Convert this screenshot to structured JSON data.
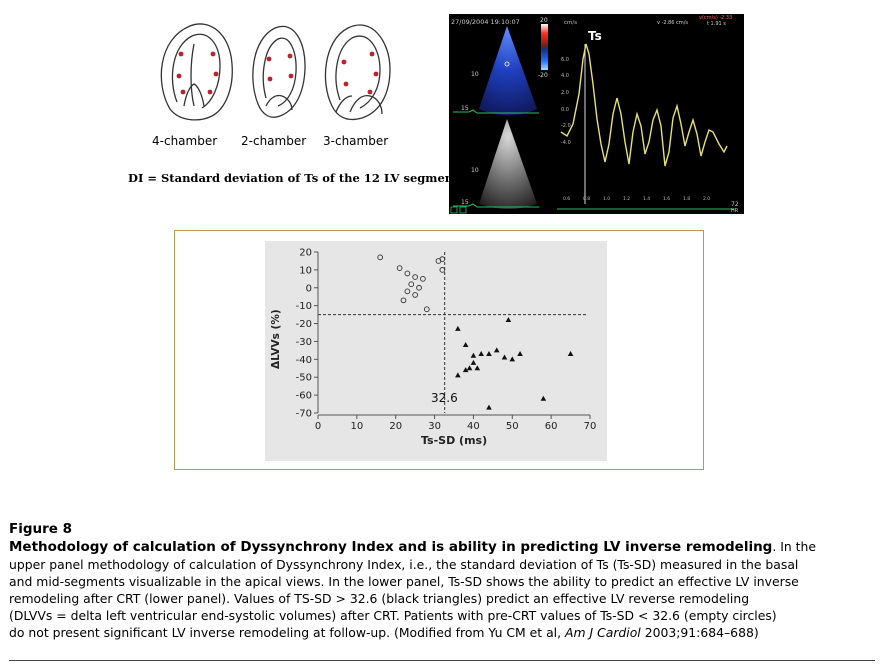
{
  "top_panel": {
    "views": [
      "4-chamber",
      "2-chamber",
      "3-chamber"
    ],
    "di_definition": "DI = Standard deviation of Ts of the 12 LV segments"
  },
  "echo": {
    "timestamp": "27/09/2004 19:10:07",
    "ts_label": "Ts",
    "scale_top": "20",
    "scale_bottom": "-20",
    "unit": "cm/s",
    "readout_left": "v -2.86 cm/s",
    "readout_right": "v(cm/s) -2.33",
    "readout_right2": "t 1.91 s",
    "depth_mark": "15",
    "depth_mark2": "10",
    "y_ticks": [
      "6.0",
      "4.0",
      "2.0",
      "0.0",
      "-2.0",
      "-4.0"
    ],
    "x_ticks": [
      "0.6",
      "0.8",
      "1.0",
      "1.2",
      "1.4",
      "1.6",
      "1.8",
      "2.0"
    ],
    "hr": "72",
    "hr_unit": "HR"
  },
  "chart_data": {
    "type": "scatter",
    "xlabel": "Ts-SD (ms)",
    "ylabel": "ΔLVVs (%)",
    "xlim": [
      0,
      70
    ],
    "ylim": [
      -70,
      20
    ],
    "x_ticks": [
      "0",
      "10",
      "20",
      "30",
      "40",
      "50",
      "60",
      "70"
    ],
    "y_ticks": [
      "20",
      "10",
      "0",
      "-10",
      "-20",
      "-30",
      "-40",
      "-50",
      "-60",
      "-70"
    ],
    "cutoff_x": 32.6,
    "cutoff_label": "32.6",
    "cutoff_y": -15,
    "series": [
      {
        "marker": "empty-circle",
        "points": [
          [
            16,
            17
          ],
          [
            21,
            11
          ],
          [
            23,
            8
          ],
          [
            25,
            6
          ],
          [
            27,
            5
          ],
          [
            24,
            2
          ],
          [
            26,
            0
          ],
          [
            23,
            -2
          ],
          [
            25,
            -4
          ],
          [
            22,
            -7
          ],
          [
            28,
            -12
          ],
          [
            31,
            15
          ],
          [
            32,
            16
          ],
          [
            32,
            10
          ]
        ]
      },
      {
        "marker": "filled-triangle",
        "points": [
          [
            36,
            -23
          ],
          [
            38,
            -32
          ],
          [
            49,
            -18
          ],
          [
            40,
            -38
          ],
          [
            42,
            -37
          ],
          [
            44,
            -37
          ],
          [
            46,
            -35
          ],
          [
            48,
            -39
          ],
          [
            50,
            -40
          ],
          [
            40,
            -42
          ],
          [
            41,
            -45
          ],
          [
            39,
            -45
          ],
          [
            52,
            -37
          ],
          [
            65,
            -37
          ],
          [
            36,
            -49
          ],
          [
            38,
            -46
          ],
          [
            58,
            -62
          ],
          [
            44,
            -67
          ]
        ]
      }
    ]
  },
  "caption": {
    "figure_label": "Figure 8",
    "heading": "Methodology of calculation of Dyssynchrony Index and is ability in predicting LV inverse remodeling",
    "body_lines": [
      "upper panel methodology of calculation of Dyssynchrony Index, i.e., the standard deviation of Ts (Ts-SD) measured in the basal",
      "and mid-segments visualizable in the apical views. In the lower panel, Ts-SD shows the ability to predict an effective LV inverse",
      "remodeling after CRT (lower panel). Values of TS-SD > 32.6 (black triangles) predict an effective LV reverse remodeling",
      "(DLVVs = delta left ventricular end-systolic volumes) after CRT. Patients with pre-CRT values of Ts-SD < 32.6 (empty circles)"
    ],
    "heading_tail": ". In the",
    "last_line_pre": "do not present significant LV inverse remodeling at follow-up. (Modified from Yu CM et al, ",
    "journal": "Am J Cardiol",
    "last_line_post": " 2003;91:684–688)"
  }
}
